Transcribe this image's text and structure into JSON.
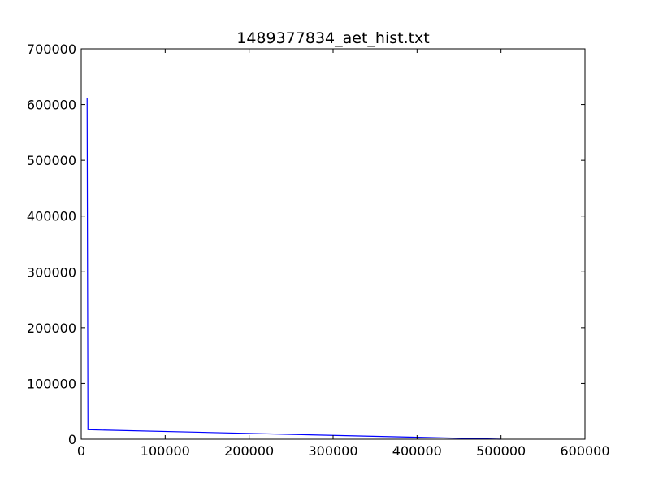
{
  "chart_data": {
    "type": "line",
    "title": "1489377834_aet_hist.txt",
    "xlabel": "",
    "ylabel": "",
    "xlim": [
      0,
      600000
    ],
    "ylim": [
      0,
      700000
    ],
    "xticks": [
      0,
      100000,
      200000,
      300000,
      400000,
      500000,
      600000
    ],
    "yticks": [
      0,
      100000,
      200000,
      300000,
      400000,
      500000,
      600000,
      700000
    ],
    "xtick_labels": [
      "0",
      "100000",
      "200000",
      "300000",
      "400000",
      "500000",
      "600000"
    ],
    "ytick_labels": [
      "0",
      "100000",
      "200000",
      "300000",
      "400000",
      "500000",
      "600000",
      "700000"
    ],
    "grid": false,
    "series": [
      {
        "name": "aet_hist",
        "color": "#0000ff",
        "x": [
          7000,
          8000,
          500000
        ],
        "y": [
          612000,
          17000,
          0
        ]
      }
    ]
  }
}
